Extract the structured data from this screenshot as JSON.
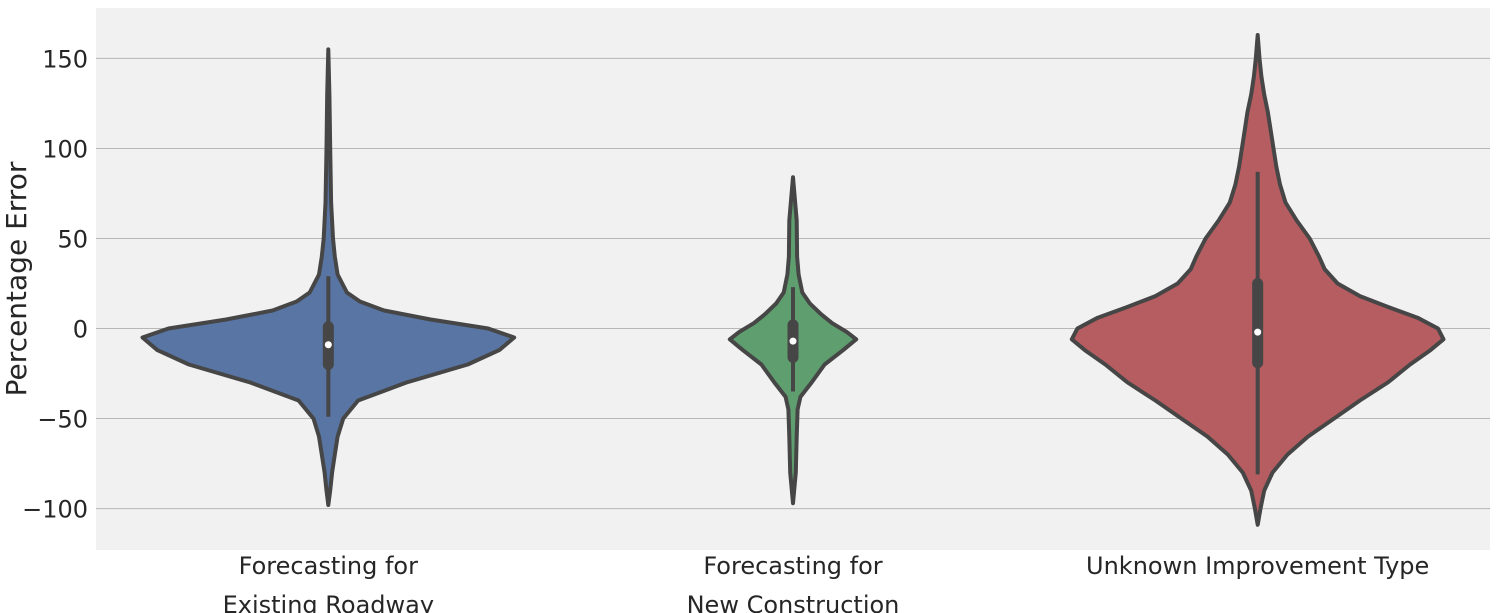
{
  "chart_data": {
    "type": "violin",
    "ylabel": "Percentage Error",
    "xlabel": "",
    "ylim": [
      -123,
      178
    ],
    "yticks": [
      -100,
      -50,
      0,
      50,
      100,
      150
    ],
    "ytick_labels": [
      "−100",
      "−50",
      "0",
      "50",
      "100",
      "150"
    ],
    "grid": "y-major",
    "background": "#f1f1f1",
    "grid_color": "#b7b7b7",
    "outline_color": "#464646",
    "categories": [
      {
        "label_lines": [
          "Forecasting for",
          "Existing Roadway"
        ]
      },
      {
        "label_lines": [
          "Forecasting for",
          "New Construction"
        ]
      },
      {
        "label_lines": [
          "Unknown Improvement Type"
        ]
      }
    ],
    "series": [
      {
        "category_index": 0,
        "color": "#5975a4",
        "min": -98,
        "max": 155,
        "q1": -20,
        "median": -9,
        "q3": 1,
        "whisker_low": -49,
        "whisker_high": 29,
        "profile": [
          [
            -98,
            0.0
          ],
          [
            -90,
            0.01
          ],
          [
            -80,
            0.02
          ],
          [
            -70,
            0.035
          ],
          [
            -60,
            0.05
          ],
          [
            -50,
            0.08
          ],
          [
            -40,
            0.16
          ],
          [
            -30,
            0.42
          ],
          [
            -20,
            0.75
          ],
          [
            -12,
            0.92
          ],
          [
            -5,
            1.0
          ],
          [
            0,
            0.86
          ],
          [
            5,
            0.55
          ],
          [
            10,
            0.3
          ],
          [
            15,
            0.17
          ],
          [
            20,
            0.1
          ],
          [
            30,
            0.05
          ],
          [
            40,
            0.035
          ],
          [
            50,
            0.025
          ],
          [
            70,
            0.015
          ],
          [
            100,
            0.01
          ],
          [
            130,
            0.006
          ],
          [
            155,
            0.0
          ]
        ]
      },
      {
        "category_index": 1,
        "color": "#5f9e6e",
        "min": -97,
        "max": 84,
        "q1": -16,
        "median": -7,
        "q3": 2,
        "whisker_low": -35,
        "whisker_high": 23,
        "profile": [
          [
            -97,
            0.0
          ],
          [
            -80,
            0.015
          ],
          [
            -60,
            0.02
          ],
          [
            -45,
            0.025
          ],
          [
            -38,
            0.04
          ],
          [
            -30,
            0.1
          ],
          [
            -20,
            0.17
          ],
          [
            -12,
            0.27
          ],
          [
            -6,
            0.34
          ],
          [
            -2,
            0.29
          ],
          [
            3,
            0.21
          ],
          [
            8,
            0.15
          ],
          [
            14,
            0.09
          ],
          [
            20,
            0.05
          ],
          [
            30,
            0.03
          ],
          [
            40,
            0.022
          ],
          [
            60,
            0.02
          ],
          [
            84,
            0.0
          ]
        ]
      },
      {
        "category_index": 2,
        "color": "#b55d60",
        "min": -109,
        "max": 163,
        "q1": -19,
        "median": -2,
        "q3": 25,
        "whisker_low": -81,
        "whisker_high": 87,
        "profile": [
          [
            -109,
            0.0
          ],
          [
            -100,
            0.015
          ],
          [
            -90,
            0.035
          ],
          [
            -80,
            0.08
          ],
          [
            -70,
            0.16
          ],
          [
            -60,
            0.27
          ],
          [
            -50,
            0.41
          ],
          [
            -40,
            0.55
          ],
          [
            -30,
            0.7
          ],
          [
            -20,
            0.82
          ],
          [
            -12,
            0.93
          ],
          [
            -6,
            1.0
          ],
          [
            0,
            0.97
          ],
          [
            6,
            0.86
          ],
          [
            12,
            0.7
          ],
          [
            18,
            0.55
          ],
          [
            25,
            0.43
          ],
          [
            33,
            0.36
          ],
          [
            40,
            0.33
          ],
          [
            50,
            0.28
          ],
          [
            60,
            0.21
          ],
          [
            70,
            0.15
          ],
          [
            80,
            0.12
          ],
          [
            90,
            0.1
          ],
          [
            100,
            0.085
          ],
          [
            110,
            0.07
          ],
          [
            120,
            0.055
          ],
          [
            130,
            0.035
          ],
          [
            140,
            0.02
          ],
          [
            150,
            0.01
          ],
          [
            163,
            0.0
          ]
        ]
      }
    ]
  }
}
